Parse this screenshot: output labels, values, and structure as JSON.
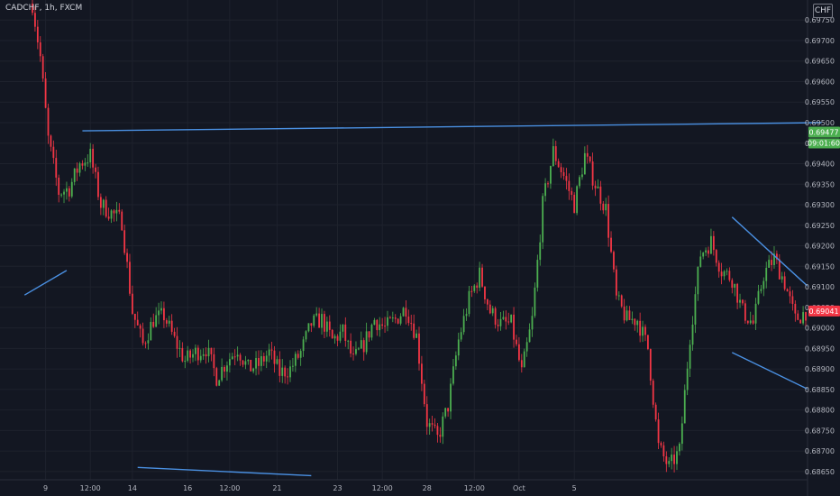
{
  "header": {
    "symbol": "CADCHF, 1h, FXCM",
    "currency": "CHF"
  },
  "colors": {
    "background": "#131722",
    "up": "#26a69a",
    "down": "#ef5350",
    "candle_up": "#4caf50",
    "candle_down": "#f23645",
    "trendline": "#4a90e2",
    "current_price_tag": "#f23645",
    "countdown_tag": "#4caf50"
  },
  "chart_data": {
    "type": "candlestick",
    "symbol": "CADCHF",
    "interval": "1h",
    "source": "FXCM",
    "ylim": [
      0.6863,
      0.6979
    ],
    "y_ticks": [
      "0.69750",
      "0.69700",
      "0.69650",
      "0.69600",
      "0.69550",
      "0.69500",
      "0.69450",
      "0.69400",
      "0.69350",
      "0.69300",
      "0.69250",
      "0.69200",
      "0.69150",
      "0.69100",
      "0.69050",
      "0.69000",
      "0.68950",
      "0.68900",
      "0.68850",
      "0.68800",
      "0.68750",
      "0.68700",
      "0.68650"
    ],
    "x_ticks": [
      "9",
      "12:00",
      "14",
      "16",
      "12:00",
      "21",
      "23",
      "12:00",
      "28",
      "12:00",
      "Oct",
      "5"
    ],
    "close_path": [
      [
        0,
        0.6979
      ],
      [
        3,
        0.6966
      ],
      [
        6,
        0.6946
      ],
      [
        10,
        0.6933
      ],
      [
        14,
        0.6934
      ],
      [
        18,
        0.694
      ],
      [
        22,
        0.6942
      ],
      [
        26,
        0.693
      ],
      [
        30,
        0.6928
      ],
      [
        34,
        0.6926
      ],
      [
        38,
        0.6904
      ],
      [
        42,
        0.6896
      ],
      [
        46,
        0.6902
      ],
      [
        50,
        0.6903
      ],
      [
        54,
        0.6897
      ],
      [
        58,
        0.6892
      ],
      [
        62,
        0.6894
      ],
      [
        66,
        0.6895
      ],
      [
        70,
        0.6888
      ],
      [
        74,
        0.6892
      ],
      [
        78,
        0.6895
      ],
      [
        82,
        0.689
      ],
      [
        86,
        0.6891
      ],
      [
        90,
        0.6894
      ],
      [
        94,
        0.6889
      ],
      [
        98,
        0.689
      ],
      [
        102,
        0.6894
      ],
      [
        106,
        0.6901
      ],
      [
        110,
        0.6902
      ],
      [
        114,
        0.6897
      ],
      [
        118,
        0.6899
      ],
      [
        122,
        0.6892
      ],
      [
        126,
        0.6896
      ],
      [
        130,
        0.6902
      ],
      [
        134,
        0.69
      ],
      [
        138,
        0.6902
      ],
      [
        142,
        0.6905
      ],
      [
        146,
        0.6898
      ],
      [
        150,
        0.6877
      ],
      [
        154,
        0.6873
      ],
      [
        158,
        0.6881
      ],
      [
        162,
        0.6897
      ],
      [
        166,
        0.6907
      ],
      [
        170,
        0.6913
      ],
      [
        174,
        0.6904
      ],
      [
        178,
        0.6901
      ],
      [
        182,
        0.6901
      ],
      [
        186,
        0.6889
      ],
      [
        190,
        0.6902
      ],
      [
        194,
        0.693
      ],
      [
        198,
        0.6943
      ],
      [
        202,
        0.6937
      ],
      [
        206,
        0.693
      ],
      [
        210,
        0.6942
      ],
      [
        214,
        0.6935
      ],
      [
        218,
        0.6929
      ],
      [
        222,
        0.6907
      ],
      [
        226,
        0.6902
      ],
      [
        230,
        0.6902
      ],
      [
        234,
        0.6895
      ],
      [
        238,
        0.6871
      ],
      [
        242,
        0.6866
      ],
      [
        246,
        0.687
      ],
      [
        250,
        0.6898
      ],
      [
        254,
        0.6918
      ],
      [
        258,
        0.6921
      ],
      [
        262,
        0.6914
      ],
      [
        266,
        0.6912
      ],
      [
        270,
        0.6904
      ],
      [
        274,
        0.6901
      ],
      [
        278,
        0.6913
      ],
      [
        282,
        0.6917
      ],
      [
        286,
        0.6911
      ],
      [
        290,
        0.6902
      ],
      [
        294,
        0.6904
      ]
    ],
    "current_price": "0.69041",
    "reference_price": "0.69477",
    "countdown": "09:01:60",
    "trendlines": [
      {
        "from": [
          -3,
          0.6908
        ],
        "to": [
          13,
          0.6914
        ]
      },
      {
        "from": [
          19,
          0.6948
        ],
        "to": [
          300,
          0.695
        ]
      },
      {
        "from": [
          40,
          0.6866
        ],
        "to": [
          106,
          0.6864
        ]
      },
      {
        "from": [
          266,
          0.6927
        ],
        "to": [
          295,
          0.691
        ]
      },
      {
        "from": [
          266,
          0.6894
        ],
        "to": [
          295,
          0.6885
        ]
      }
    ]
  }
}
